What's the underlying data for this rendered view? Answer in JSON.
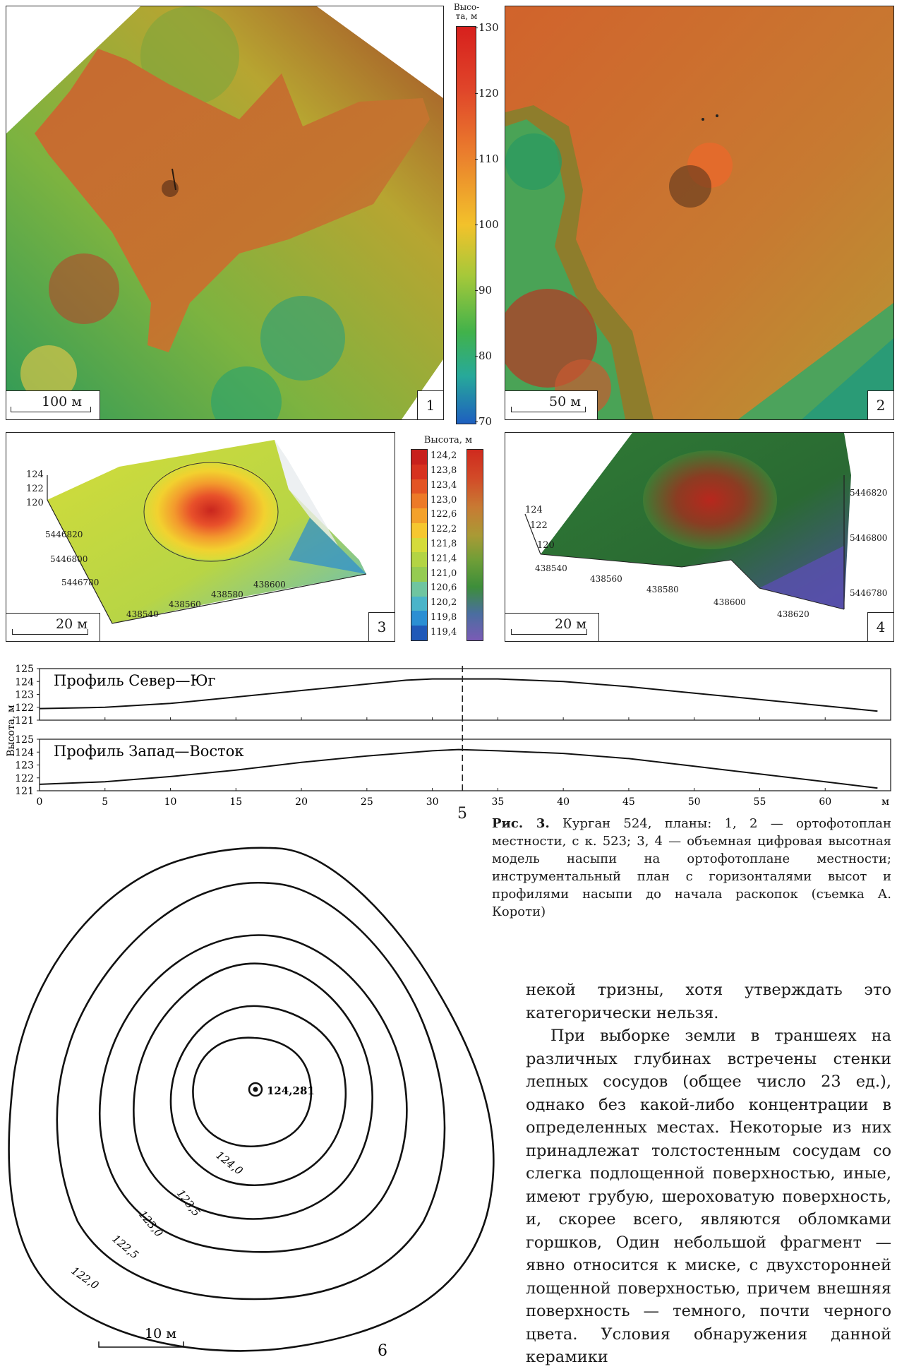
{
  "panels": {
    "p1": {
      "number": "1",
      "scale": "100 м"
    },
    "p2": {
      "number": "2",
      "scale": "50 м"
    },
    "p3": {
      "number": "3",
      "scale": "20 м",
      "y_ticks": [
        "124",
        "122",
        "120"
      ],
      "north_ticks": [
        "5446820",
        "5446800",
        "5446780"
      ],
      "east_ticks": [
        "438540",
        "438560",
        "438580",
        "438600"
      ]
    },
    "p4": {
      "number": "4",
      "scale": "20 м",
      "z_ticks": [
        "124",
        "122",
        "120"
      ],
      "north_ticks": [
        "5446820",
        "5446800",
        "5446780"
      ],
      "east_ticks": [
        "438540",
        "438560",
        "438580",
        "438600",
        "438620"
      ]
    },
    "p5": {
      "number": "5"
    },
    "p6": {
      "number": "6",
      "scale": "10 м",
      "peak_label": "124,281",
      "contour_labels": [
        "124,0",
        "123,5",
        "123,0",
        "122,5",
        "122,0"
      ]
    }
  },
  "legend_top": {
    "title_line1": "Высо-",
    "title_line2": "та, м",
    "ticks": [
      "130",
      "120",
      "110",
      "100",
      "90",
      "80",
      "70"
    ]
  },
  "legend_mid": {
    "title": "Высота, м",
    "ticks": [
      "124,2",
      "123,8",
      "123,4",
      "123,0",
      "122,6",
      "122,2",
      "121,8",
      "121,4",
      "121,0",
      "120,6",
      "120,2",
      "119,8",
      "119,4"
    ]
  },
  "chart_data": [
    {
      "type": "line",
      "title": "Профиль Север—Юг",
      "ylabel": "Высота, м",
      "ylim": [
        121,
        125
      ],
      "xlim": [
        0,
        65
      ],
      "y_ticks": [
        "125",
        "124",
        "123",
        "122",
        "121"
      ],
      "x": [
        0,
        5,
        10,
        15,
        20,
        25,
        28,
        30,
        32,
        35,
        40,
        45,
        50,
        55,
        60,
        64
      ],
      "y": [
        121.9,
        122.0,
        122.3,
        122.8,
        123.3,
        123.8,
        124.1,
        124.2,
        124.2,
        124.2,
        124.0,
        123.6,
        123.1,
        122.6,
        122.1,
        121.7
      ]
    },
    {
      "type": "line",
      "title": "Профиль Запад—Восток",
      "ylabel": "Высота, м",
      "ylim": [
        121,
        125
      ],
      "xlim": [
        0,
        65
      ],
      "y_ticks": [
        "125",
        "124",
        "123",
        "122",
        "121"
      ],
      "x_ticks": [
        "0",
        "5",
        "10",
        "15",
        "20",
        "25",
        "30",
        "35",
        "40",
        "45",
        "50",
        "55",
        "60"
      ],
      "x_unit": "м",
      "x": [
        0,
        5,
        10,
        15,
        20,
        25,
        30,
        32,
        35,
        40,
        45,
        50,
        55,
        60,
        64
      ],
      "y": [
        121.5,
        121.7,
        122.1,
        122.6,
        123.2,
        123.7,
        124.1,
        124.2,
        124.1,
        123.9,
        123.5,
        122.9,
        122.3,
        121.7,
        121.2
      ]
    }
  ],
  "caption": {
    "label": "Рис. 3.",
    "text": " Курган 524, планы: 1, 2 — ортофотоплан местности, с к. 523; 3, 4 — объемная цифровая высотная модель насыпи на ортофотоплане местности; инструментальный план с горизонталями высот и профилями насыпи до начала раскопок (съемка А. Короти)"
  },
  "body": {
    "p1": "некой тризны, хотя утверждать это категорически нельзя.",
    "p2": "При выборке земли в траншеях на различных глубинах встречены стенки лепных сосудов (общее число 23 ед.), однако без какой-либо концентрации в определенных местах. Некоторые из них принадлежат толстостенным сосудам со слегка подлощенной поверхностью, иные, имеют грубую, шероховатую поверхность, и, скорее всего, являются обломками горшков, Один небольшой фрагмент — явно относится к миске, с двухсторонней лощенной поверхностью, причем внешняя поверхность — темного, почти черного цвета. Условия обнаружения данной керамики"
  }
}
